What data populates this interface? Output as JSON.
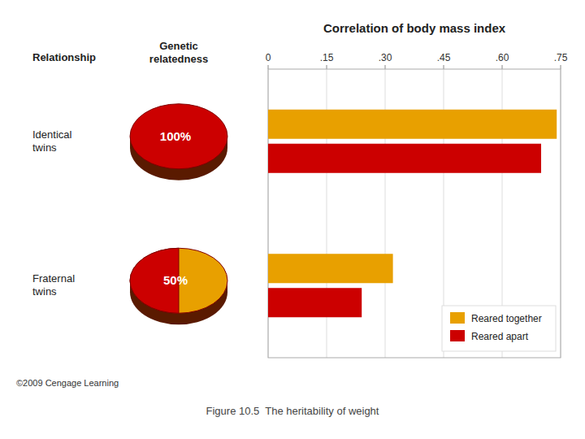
{
  "chart_data": [
    {
      "type": "bar",
      "orientation": "horizontal",
      "title": "Correlation of body mass index",
      "ylabel": "Relationship",
      "categories": [
        "Identical\ntwins",
        "Fraternal\ntwins"
      ],
      "series": [
        {
          "name": "Reared together",
          "color": "#E8A000",
          "values": [
            0.74,
            0.32
          ]
        },
        {
          "name": "Reared apart",
          "color": "#CC0000",
          "values": [
            0.7,
            0.24
          ]
        }
      ],
      "xlim": [
        0,
        0.75
      ],
      "xticks": [
        0,
        {
          "value": 0.15,
          "label": ".15"
        },
        {
          "value": 0.3,
          "label": ".30"
        },
        {
          "value": 0.45,
          "label": ".45"
        },
        {
          "value": 0.6,
          "label": ".60"
        },
        {
          "value": 0.75,
          "label": ".75"
        }
      ],
      "grid": true,
      "legend": "right",
      "annotations": [
        "©2009 Cengage Learning",
        "Figure 10.5  The heritability of weight"
      ]
    },
    {
      "type": "pie",
      "title": "Genetic\nrelatedness",
      "values": [
        100,
        50
      ],
      "value_labels": [
        "100%",
        "50%"
      ],
      "data_labels": true,
      "color": "#CC0000"
    }
  ]
}
